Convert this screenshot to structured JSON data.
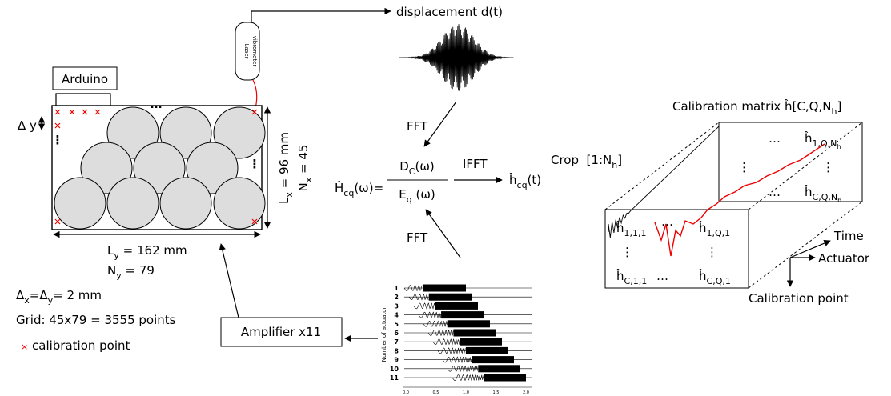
{
  "header": {
    "output": "displacement d(t)",
    "device": [
      "Laser",
      "vibrometer"
    ]
  },
  "plate": {
    "controller": "Arduino",
    "delta_y": "Δ y",
    "lx": [
      {
        "text": "L"
      },
      {
        "text": "x",
        "sub": 1
      },
      {
        "text": " = 96 mm"
      }
    ],
    "nx": [
      {
        "text": "N"
      },
      {
        "text": "x",
        "sub": 1
      },
      {
        "text": " = 45"
      }
    ],
    "ly": [
      {
        "text": "L"
      },
      {
        "text": "y",
        "sub": 1
      },
      {
        "text": " = 162 mm"
      }
    ],
    "ny": [
      {
        "text": "N"
      },
      {
        "text": "y",
        "sub": 1
      },
      {
        "text": " = 79"
      }
    ],
    "spacing": [
      {
        "text": "Δ"
      },
      {
        "text": "x",
        "sub": 1
      },
      {
        "text": "=Δ"
      },
      {
        "text": "y",
        "sub": 1
      },
      {
        "text": "= 2 mm"
      }
    ],
    "grid": "Grid: 45x79 = 3555 points",
    "legend": "calibration point"
  },
  "processing": {
    "fft_forward": "FFT",
    "fft_input": "FFT",
    "ifft": "IFFT",
    "transfer": [
      {
        "text": "Ĥ"
      },
      {
        "text": "cq",
        "sub": 1
      },
      {
        "text": "(ω)="
      }
    ],
    "numerator": [
      {
        "text": "D"
      },
      {
        "text": "C",
        "sub": 1
      },
      {
        "text": "(ω)"
      }
    ],
    "denominator": [
      {
        "text": "E"
      },
      {
        "text": "q",
        "sub": 1
      },
      {
        "text": " (ω)"
      }
    ],
    "impulse": [
      {
        "text": "ĥ"
      },
      {
        "text": "cq",
        "sub": 1
      },
      {
        "text": "(t)"
      }
    ],
    "crop": [
      {
        "text": "Crop  [1:N"
      },
      {
        "text": "h",
        "sub": 1
      },
      {
        "text": "]"
      }
    ]
  },
  "amplifier": "Amplifier x11",
  "matrix": {
    "title": [
      {
        "text": "Calibration matrix ĥ[C,Q,N"
      },
      {
        "text": "h",
        "sub": 1
      },
      {
        "text": "]"
      }
    ],
    "front": [
      [
        {
          "text": "ĥ"
        },
        {
          "text": "1,1,1",
          "sub": 1
        }
      ],
      [
        {
          "text": "ĥ"
        },
        {
          "text": "1,Q,1",
          "sub": 1
        }
      ],
      [
        {
          "text": "ĥ"
        },
        {
          "text": "C,1,1",
          "sub": 1
        }
      ],
      [
        {
          "text": "ĥ"
        },
        {
          "text": "C,Q,1",
          "sub": 1
        }
      ]
    ],
    "back": [
      [
        {
          "text": "ĥ"
        },
        {
          "text": "1,Q,N",
          "sub": 1
        },
        {
          "text": "h",
          "sub": 2
        }
      ],
      [
        {
          "text": "ĥ"
        },
        {
          "text": "C,Q,N",
          "sub": 1
        },
        {
          "text": "h",
          "sub": 2
        }
      ]
    ],
    "dots": "…",
    "vdots": "⋮",
    "axes": {
      "time": "Time",
      "actuator": "Actuator",
      "point": "Calibration point"
    }
  },
  "actuator_plot": {
    "ylabel": "Number of actuator",
    "rows": [
      "1",
      "2",
      "3",
      "4",
      "5",
      "6",
      "7",
      "8",
      "9",
      "10",
      "11"
    ],
    "xticks": [
      "0.0",
      "0.5",
      "1.0",
      "1.5",
      "2.0"
    ]
  }
}
